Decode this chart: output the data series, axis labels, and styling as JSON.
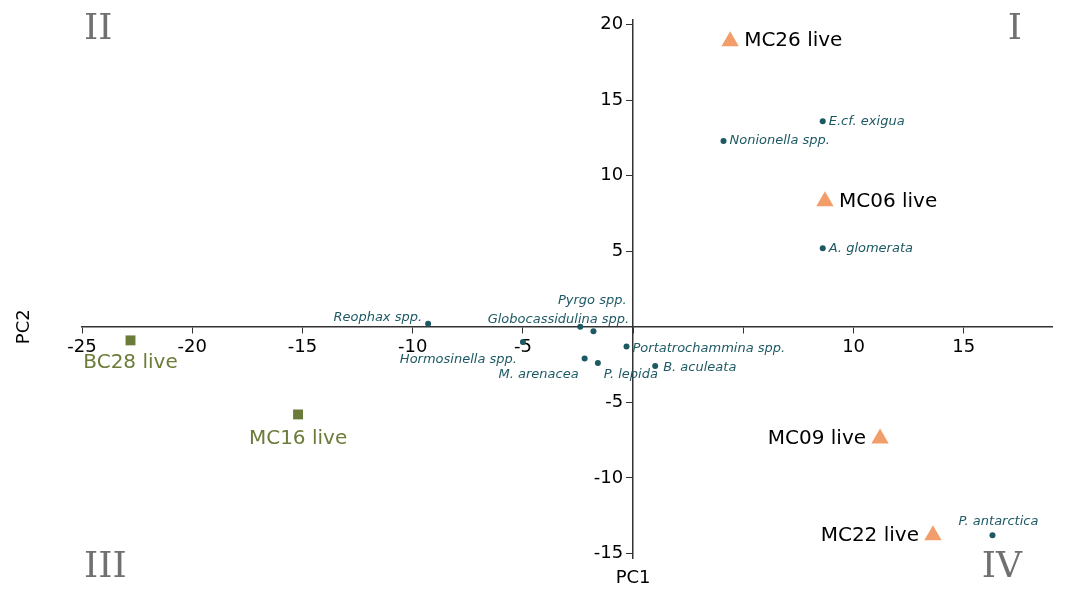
{
  "chart_data": {
    "type": "scatter",
    "xlabel": "PC1",
    "ylabel": "PC2",
    "xlim": [
      -25,
      19
    ],
    "ylim": [
      -15.3,
      20.3
    ],
    "xticks": [
      -25,
      -20,
      -15,
      -10,
      -5,
      {
        "value": 0,
        "label": null
      },
      {
        "value": 5,
        "label": null
      },
      10,
      15
    ],
    "yticks": [
      -15,
      -10,
      -5,
      {
        "value": 0,
        "label": null
      },
      5,
      10,
      15,
      20
    ],
    "grid": false,
    "legend": false,
    "annotations": [
      "I",
      "II",
      "III",
      "IV"
    ],
    "series": [
      {
        "color": "#f19e6b",
        "marker": "triangle",
        "x": [
          4.4,
          8.7,
          11.2,
          13.6
        ],
        "values": [
          18.9,
          8.3,
          -7.4,
          -13.8
        ],
        "value_labels": [
          "MC26 live",
          "MC06 live",
          "MC09 live",
          "MC22 live"
        ]
      },
      {
        "color": "#6b7b3a",
        "marker": "square",
        "x": [
          -22.8,
          -15.2
        ],
        "values": [
          -0.9,
          -5.8
        ],
        "value_labels": [
          "BC28 live",
          "MC16 live"
        ]
      },
      {
        "color": "#1d5963",
        "marker": "circle",
        "x": [
          8.6,
          4.1,
          8.6,
          -9.3,
          -2.4,
          -1.8,
          -5.0,
          -0.3,
          -2.2,
          -1.6,
          1.0,
          16.3
        ],
        "values": [
          13.6,
          12.3,
          5.2,
          0.2,
          0.0,
          -0.3,
          -1.0,
          -1.3,
          -2.1,
          -2.4,
          -2.6,
          -13.8
        ],
        "value_labels": [
          "E.cf. exigua",
          "Nonionella spp.",
          "A. glomerata",
          "Reophax spp.",
          "Pyrgo spp.",
          "Globocassidulina spp.",
          "Hormosinella spp.",
          "Portatrochammina spp.",
          "M. arenacea",
          "P. lepida",
          "B. aculeata",
          "P. antarctica"
        ]
      }
    ]
  }
}
